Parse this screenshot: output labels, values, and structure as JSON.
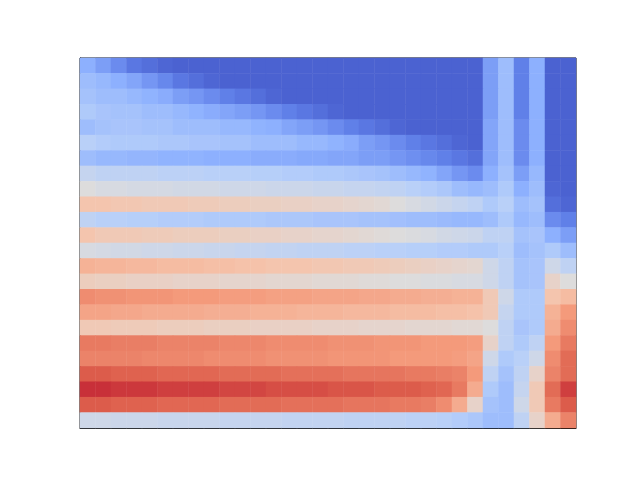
{
  "chart_data": {
    "type": "heatmap",
    "color": "coolwarm",
    "tick_labels": false,
    "color_range": [
      0,
      1
    ],
    "cells": [
      [
        0.25,
        0.2,
        0.15,
        0.1,
        0.08,
        0.06,
        0.05,
        0.05,
        0.05,
        0.05,
        0.05,
        0.05,
        0.05,
        0.05,
        0.05,
        0.05,
        0.05,
        0.05,
        0.05,
        0.05,
        0.05,
        0.05,
        0.05,
        0.05,
        0.05,
        0.05,
        0.2,
        0.3,
        0.12,
        0.25,
        0.05,
        0.05
      ],
      [
        0.3,
        0.28,
        0.25,
        0.22,
        0.18,
        0.14,
        0.1,
        0.08,
        0.06,
        0.05,
        0.05,
        0.05,
        0.05,
        0.05,
        0.05,
        0.05,
        0.05,
        0.05,
        0.05,
        0.05,
        0.05,
        0.05,
        0.05,
        0.05,
        0.05,
        0.05,
        0.2,
        0.3,
        0.12,
        0.25,
        0.05,
        0.05
      ],
      [
        0.32,
        0.3,
        0.3,
        0.28,
        0.26,
        0.24,
        0.2,
        0.18,
        0.15,
        0.12,
        0.1,
        0.08,
        0.06,
        0.05,
        0.05,
        0.05,
        0.05,
        0.05,
        0.05,
        0.05,
        0.05,
        0.05,
        0.05,
        0.05,
        0.05,
        0.05,
        0.2,
        0.3,
        0.12,
        0.25,
        0.05,
        0.05
      ],
      [
        0.35,
        0.33,
        0.32,
        0.32,
        0.3,
        0.3,
        0.28,
        0.26,
        0.24,
        0.22,
        0.2,
        0.18,
        0.15,
        0.12,
        0.1,
        0.08,
        0.06,
        0.05,
        0.05,
        0.05,
        0.05,
        0.05,
        0.05,
        0.05,
        0.05,
        0.05,
        0.2,
        0.3,
        0.12,
        0.25,
        0.05,
        0.05
      ],
      [
        0.3,
        0.32,
        0.33,
        0.33,
        0.32,
        0.32,
        0.3,
        0.3,
        0.3,
        0.28,
        0.28,
        0.26,
        0.25,
        0.22,
        0.2,
        0.18,
        0.15,
        0.12,
        0.1,
        0.08,
        0.06,
        0.05,
        0.05,
        0.05,
        0.05,
        0.05,
        0.22,
        0.3,
        0.15,
        0.25,
        0.05,
        0.05
      ],
      [
        0.38,
        0.36,
        0.35,
        0.35,
        0.35,
        0.34,
        0.34,
        0.33,
        0.33,
        0.32,
        0.32,
        0.3,
        0.3,
        0.3,
        0.28,
        0.28,
        0.26,
        0.24,
        0.2,
        0.18,
        0.15,
        0.12,
        0.1,
        0.08,
        0.06,
        0.05,
        0.22,
        0.3,
        0.15,
        0.25,
        0.05,
        0.05
      ],
      [
        0.3,
        0.28,
        0.28,
        0.27,
        0.27,
        0.26,
        0.26,
        0.26,
        0.25,
        0.25,
        0.25,
        0.24,
        0.24,
        0.24,
        0.23,
        0.23,
        0.22,
        0.22,
        0.2,
        0.2,
        0.18,
        0.16,
        0.14,
        0.12,
        0.1,
        0.08,
        0.22,
        0.3,
        0.15,
        0.25,
        0.05,
        0.05
      ],
      [
        0.42,
        0.4,
        0.4,
        0.4,
        0.4,
        0.39,
        0.39,
        0.39,
        0.38,
        0.38,
        0.38,
        0.37,
        0.37,
        0.36,
        0.36,
        0.35,
        0.35,
        0.34,
        0.33,
        0.32,
        0.3,
        0.28,
        0.26,
        0.22,
        0.18,
        0.15,
        0.25,
        0.32,
        0.2,
        0.28,
        0.05,
        0.05
      ],
      [
        0.5,
        0.48,
        0.48,
        0.47,
        0.47,
        0.47,
        0.46,
        0.46,
        0.46,
        0.45,
        0.45,
        0.45,
        0.44,
        0.44,
        0.44,
        0.43,
        0.43,
        0.42,
        0.42,
        0.41,
        0.4,
        0.38,
        0.36,
        0.34,
        0.3,
        0.28,
        0.3,
        0.35,
        0.25,
        0.3,
        0.06,
        0.05
      ],
      [
        0.62,
        0.62,
        0.61,
        0.61,
        0.6,
        0.6,
        0.6,
        0.59,
        0.59,
        0.58,
        0.58,
        0.57,
        0.57,
        0.56,
        0.56,
        0.55,
        0.55,
        0.54,
        0.53,
        0.52,
        0.5,
        0.48,
        0.46,
        0.44,
        0.42,
        0.4,
        0.35,
        0.38,
        0.3,
        0.32,
        0.08,
        0.06
      ],
      [
        0.4,
        0.38,
        0.38,
        0.37,
        0.37,
        0.36,
        0.36,
        0.36,
        0.35,
        0.35,
        0.35,
        0.35,
        0.34,
        0.34,
        0.34,
        0.33,
        0.33,
        0.33,
        0.32,
        0.32,
        0.31,
        0.3,
        0.3,
        0.29,
        0.28,
        0.28,
        0.3,
        0.35,
        0.28,
        0.3,
        0.15,
        0.12
      ],
      [
        0.62,
        0.6,
        0.6,
        0.6,
        0.59,
        0.59,
        0.58,
        0.58,
        0.58,
        0.57,
        0.57,
        0.56,
        0.56,
        0.55,
        0.55,
        0.54,
        0.54,
        0.53,
        0.52,
        0.51,
        0.5,
        0.49,
        0.48,
        0.46,
        0.45,
        0.44,
        0.4,
        0.4,
        0.32,
        0.33,
        0.25,
        0.2
      ],
      [
        0.48,
        0.47,
        0.46,
        0.46,
        0.45,
        0.45,
        0.44,
        0.44,
        0.43,
        0.43,
        0.42,
        0.42,
        0.41,
        0.41,
        0.4,
        0.4,
        0.4,
        0.39,
        0.39,
        0.38,
        0.38,
        0.37,
        0.37,
        0.36,
        0.36,
        0.35,
        0.35,
        0.38,
        0.3,
        0.32,
        0.35,
        0.3
      ],
      [
        0.68,
        0.67,
        0.67,
        0.66,
        0.66,
        0.65,
        0.65,
        0.65,
        0.64,
        0.64,
        0.63,
        0.63,
        0.62,
        0.62,
        0.62,
        0.61,
        0.61,
        0.6,
        0.6,
        0.59,
        0.58,
        0.57,
        0.56,
        0.55,
        0.54,
        0.53,
        0.45,
        0.4,
        0.32,
        0.33,
        0.45,
        0.4
      ],
      [
        0.58,
        0.57,
        0.57,
        0.56,
        0.56,
        0.56,
        0.55,
        0.55,
        0.55,
        0.54,
        0.54,
        0.54,
        0.53,
        0.53,
        0.53,
        0.52,
        0.52,
        0.52,
        0.51,
        0.51,
        0.5,
        0.5,
        0.49,
        0.49,
        0.48,
        0.48,
        0.45,
        0.4,
        0.32,
        0.33,
        0.55,
        0.5
      ],
      [
        0.78,
        0.77,
        0.77,
        0.76,
        0.76,
        0.76,
        0.75,
        0.75,
        0.75,
        0.74,
        0.74,
        0.74,
        0.73,
        0.73,
        0.73,
        0.72,
        0.72,
        0.72,
        0.71,
        0.71,
        0.7,
        0.7,
        0.69,
        0.69,
        0.68,
        0.68,
        0.6,
        0.45,
        0.35,
        0.35,
        0.62,
        0.65
      ],
      [
        0.72,
        0.72,
        0.71,
        0.71,
        0.7,
        0.7,
        0.7,
        0.7,
        0.69,
        0.69,
        0.69,
        0.68,
        0.68,
        0.68,
        0.67,
        0.67,
        0.67,
        0.66,
        0.66,
        0.66,
        0.65,
        0.65,
        0.65,
        0.64,
        0.64,
        0.63,
        0.6,
        0.42,
        0.35,
        0.35,
        0.68,
        0.75
      ],
      [
        0.6,
        0.6,
        0.59,
        0.59,
        0.59,
        0.58,
        0.58,
        0.58,
        0.57,
        0.57,
        0.57,
        0.56,
        0.56,
        0.56,
        0.56,
        0.55,
        0.55,
        0.55,
        0.54,
        0.54,
        0.54,
        0.53,
        0.53,
        0.53,
        0.52,
        0.52,
        0.5,
        0.4,
        0.33,
        0.35,
        0.7,
        0.78
      ],
      [
        0.82,
        0.82,
        0.81,
        0.81,
        0.81,
        0.8,
        0.8,
        0.8,
        0.8,
        0.79,
        0.79,
        0.79,
        0.78,
        0.78,
        0.78,
        0.78,
        0.77,
        0.77,
        0.77,
        0.76,
        0.76,
        0.76,
        0.75,
        0.75,
        0.75,
        0.74,
        0.55,
        0.4,
        0.35,
        0.4,
        0.75,
        0.82
      ],
      [
        0.8,
        0.8,
        0.8,
        0.8,
        0.79,
        0.79,
        0.79,
        0.79,
        0.78,
        0.78,
        0.78,
        0.78,
        0.77,
        0.77,
        0.77,
        0.77,
        0.76,
        0.76,
        0.76,
        0.76,
        0.75,
        0.75,
        0.75,
        0.75,
        0.74,
        0.72,
        0.45,
        0.35,
        0.38,
        0.45,
        0.78,
        0.85
      ],
      [
        0.88,
        0.88,
        0.87,
        0.87,
        0.87,
        0.86,
        0.86,
        0.86,
        0.86,
        0.85,
        0.85,
        0.85,
        0.85,
        0.84,
        0.84,
        0.84,
        0.84,
        0.83,
        0.83,
        0.83,
        0.83,
        0.82,
        0.82,
        0.81,
        0.8,
        0.75,
        0.4,
        0.32,
        0.4,
        0.55,
        0.8,
        0.85
      ],
      [
        0.94,
        0.94,
        0.93,
        0.93,
        0.93,
        0.92,
        0.92,
        0.92,
        0.92,
        0.91,
        0.91,
        0.91,
        0.9,
        0.9,
        0.9,
        0.9,
        0.89,
        0.89,
        0.89,
        0.88,
        0.88,
        0.88,
        0.87,
        0.86,
        0.82,
        0.7,
        0.35,
        0.3,
        0.42,
        0.6,
        0.85,
        0.92
      ],
      [
        0.88,
        0.88,
        0.87,
        0.87,
        0.87,
        0.86,
        0.86,
        0.86,
        0.86,
        0.85,
        0.85,
        0.85,
        0.85,
        0.84,
        0.84,
        0.84,
        0.84,
        0.83,
        0.83,
        0.83,
        0.82,
        0.82,
        0.81,
        0.78,
        0.7,
        0.55,
        0.32,
        0.3,
        0.45,
        0.6,
        0.82,
        0.88
      ],
      [
        0.45,
        0.45,
        0.44,
        0.44,
        0.44,
        0.43,
        0.43,
        0.43,
        0.43,
        0.42,
        0.42,
        0.42,
        0.42,
        0.41,
        0.41,
        0.41,
        0.41,
        0.4,
        0.4,
        0.4,
        0.4,
        0.39,
        0.39,
        0.38,
        0.36,
        0.34,
        0.3,
        0.3,
        0.4,
        0.55,
        0.7,
        0.8
      ]
    ]
  }
}
